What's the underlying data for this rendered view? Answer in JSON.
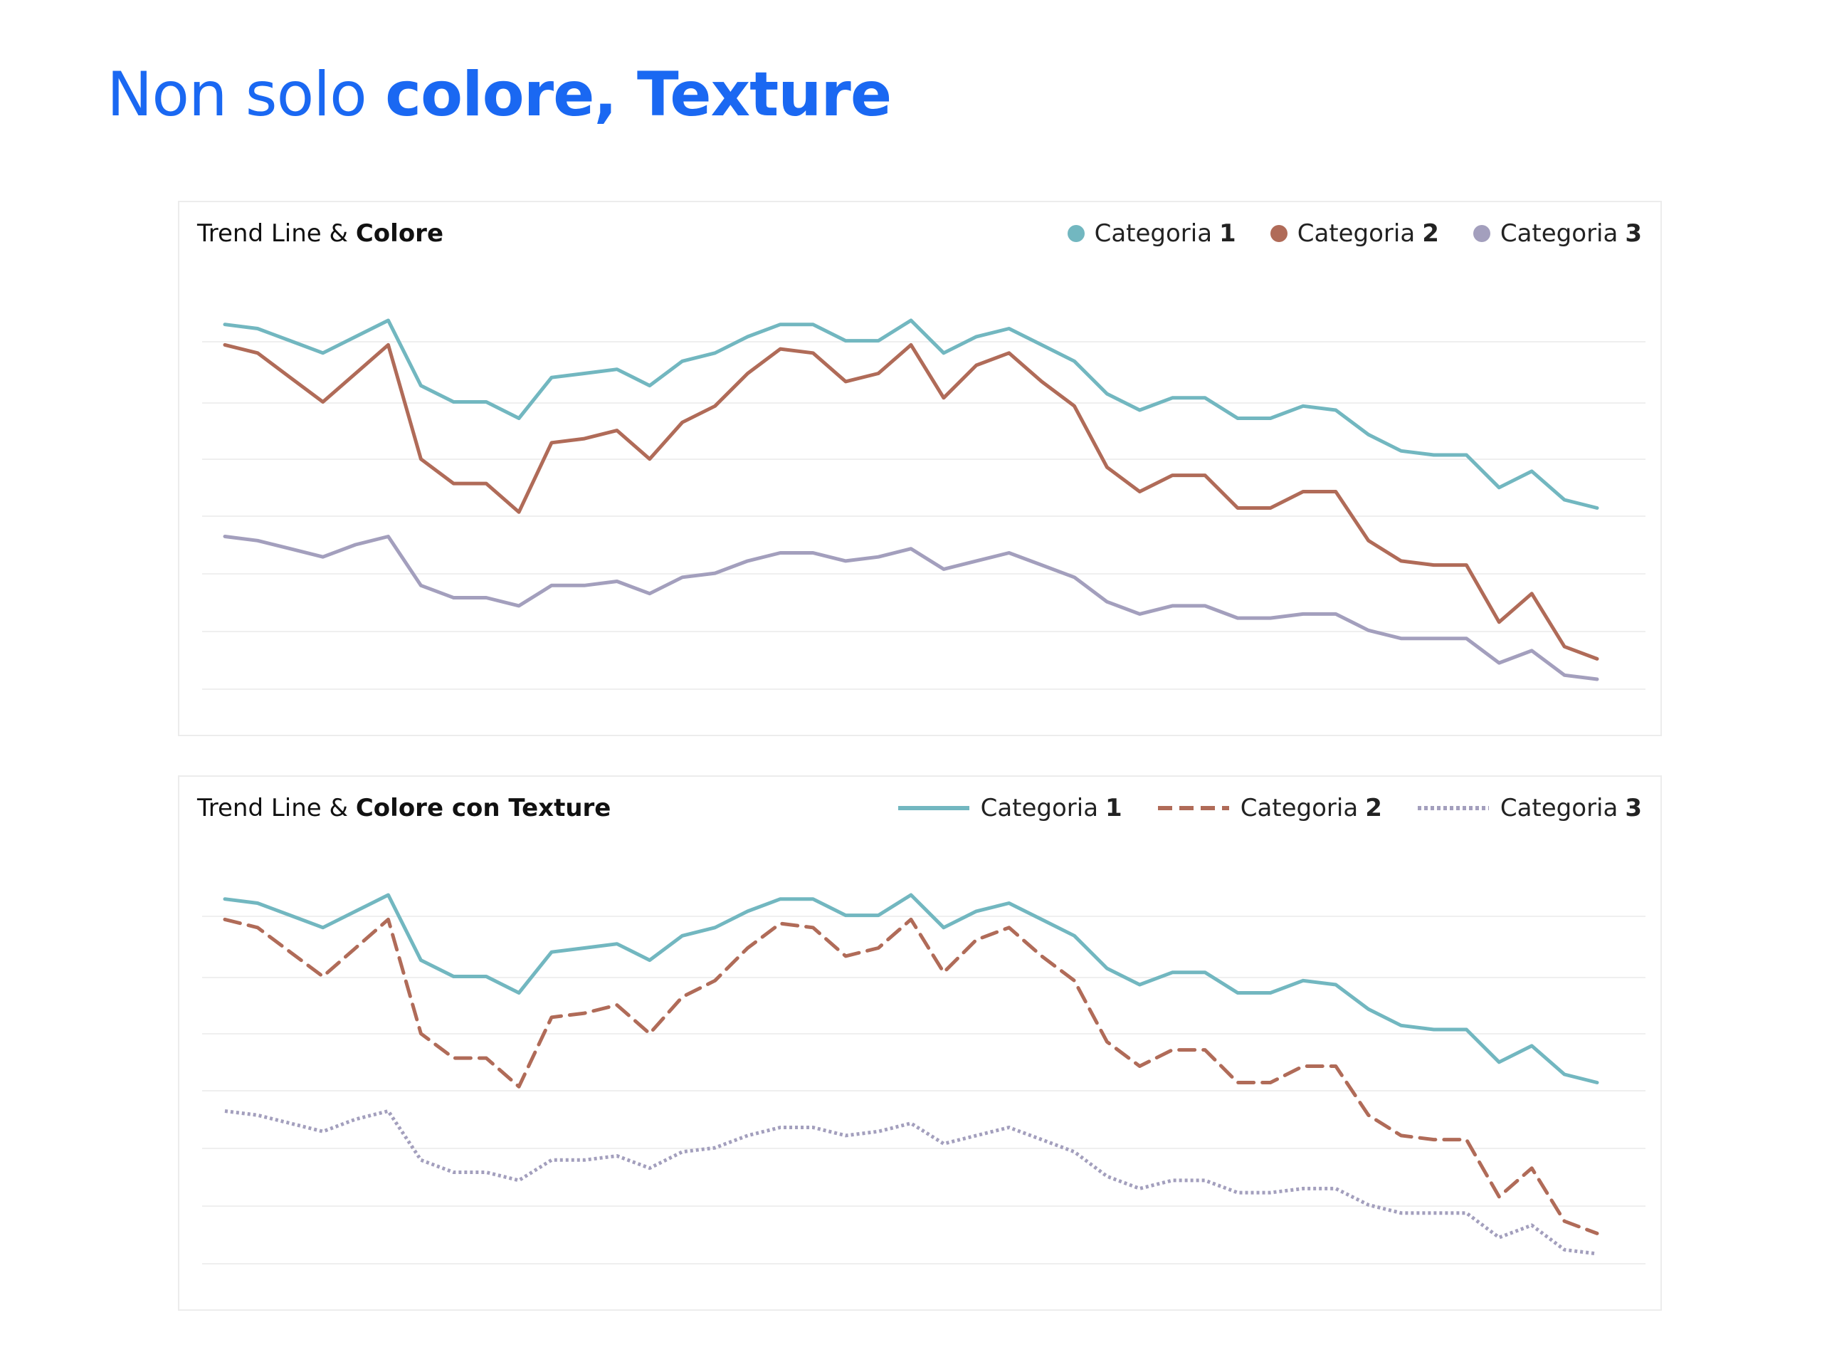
{
  "page": {
    "title_regular": "Non solo",
    "title_bold": "colore, Texture"
  },
  "colors": {
    "title": "#1a68f2",
    "grid": "#efefef",
    "border": "#ececec"
  },
  "panels": [
    {
      "title_regular": "Trend Line &",
      "title_bold": "Colore",
      "legend_style": "dot",
      "legend": [
        {
          "label": "Categoria",
          "num": "1",
          "color": "#72b7c0",
          "style": "solid"
        },
        {
          "label": "Categoria",
          "num": "2",
          "color": "#b06b58",
          "style": "solid"
        },
        {
          "label": "Categoria",
          "num": "3",
          "color": "#a39fbd",
          "style": "solid"
        }
      ]
    },
    {
      "title_regular": "Trend Line &",
      "title_bold": "Colore con Texture",
      "legend_style": "line",
      "legend": [
        {
          "label": "Categoria",
          "num": "1",
          "color": "#72b7c0",
          "style": "solid"
        },
        {
          "label": "Categoria",
          "num": "2",
          "color": "#b06b58",
          "style": "dashed"
        },
        {
          "label": "Categoria",
          "num": "3",
          "color": "#a39fbd",
          "style": "dotted"
        }
      ]
    }
  ],
  "chart_data": [
    {
      "type": "line",
      "title": "Trend Line & Colore",
      "x_labels_shown": false,
      "y_labels_shown": false,
      "grid": "horizontal",
      "ylim": [
        0,
        100
      ],
      "legend_position": "top-right",
      "series": [
        {
          "name": "Categoria 1",
          "color": "#72b7c0",
          "style": "solid",
          "values": [
            100,
            99,
            96,
            93,
            97,
            101,
            85,
            81,
            81,
            77,
            87,
            88,
            89,
            85,
            91,
            93,
            97,
            100,
            100,
            96,
            96,
            101,
            93,
            97,
            99,
            95,
            91,
            83,
            79,
            82,
            82,
            77,
            77,
            80,
            79,
            73,
            69,
            68,
            68,
            60,
            64,
            57,
            55
          ]
        },
        {
          "name": "Categoria 2",
          "color": "#b06b58",
          "style": "solid",
          "values": [
            95,
            93,
            87,
            81,
            88,
            95,
            67,
            61,
            61,
            54,
            71,
            72,
            74,
            67,
            76,
            80,
            88,
            94,
            93,
            86,
            88,
            95,
            82,
            90,
            93,
            86,
            80,
            65,
            59,
            63,
            63,
            55,
            55,
            59,
            59,
            47,
            42,
            41,
            41,
            27,
            34,
            21,
            18
          ]
        },
        {
          "name": "Categoria 3",
          "color": "#a39fbd",
          "style": "solid",
          "values": [
            48,
            47,
            45,
            43,
            46,
            48,
            36,
            33,
            33,
            31,
            36,
            36,
            37,
            34,
            38,
            39,
            42,
            44,
            44,
            42,
            43,
            45,
            40,
            42,
            44,
            41,
            38,
            32,
            29,
            31,
            31,
            28,
            28,
            29,
            29,
            25,
            23,
            23,
            23,
            17,
            20,
            14,
            13
          ]
        }
      ]
    },
    {
      "type": "line",
      "title": "Trend Line & Colore con Texture",
      "x_labels_shown": false,
      "y_labels_shown": false,
      "grid": "horizontal",
      "ylim": [
        0,
        100
      ],
      "legend_position": "top-right",
      "series": [
        {
          "name": "Categoria 1",
          "color": "#72b7c0",
          "style": "solid",
          "values": [
            100,
            99,
            96,
            93,
            97,
            101,
            85,
            81,
            81,
            77,
            87,
            88,
            89,
            85,
            91,
            93,
            97,
            100,
            100,
            96,
            96,
            101,
            93,
            97,
            99,
            95,
            91,
            83,
            79,
            82,
            82,
            77,
            77,
            80,
            79,
            73,
            69,
            68,
            68,
            60,
            64,
            57,
            55
          ]
        },
        {
          "name": "Categoria 2",
          "color": "#b06b58",
          "style": "dashed",
          "values": [
            95,
            93,
            87,
            81,
            88,
            95,
            67,
            61,
            61,
            54,
            71,
            72,
            74,
            67,
            76,
            80,
            88,
            94,
            93,
            86,
            88,
            95,
            82,
            90,
            93,
            86,
            80,
            65,
            59,
            63,
            63,
            55,
            55,
            59,
            59,
            47,
            42,
            41,
            41,
            27,
            34,
            21,
            18
          ]
        },
        {
          "name": "Categoria 3",
          "color": "#a39fbd",
          "style": "dotted",
          "values": [
            48,
            47,
            45,
            43,
            46,
            48,
            36,
            33,
            33,
            31,
            36,
            36,
            37,
            34,
            38,
            39,
            42,
            44,
            44,
            42,
            43,
            45,
            40,
            42,
            44,
            41,
            38,
            32,
            29,
            31,
            31,
            28,
            28,
            29,
            29,
            25,
            23,
            23,
            23,
            17,
            20,
            14,
            13
          ]
        }
      ]
    }
  ]
}
